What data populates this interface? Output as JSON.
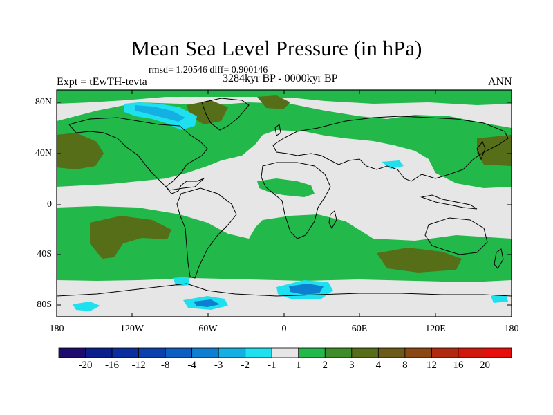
{
  "header": {
    "title": "Mean Sea Level Pressure (in hPa)",
    "rmsd_text": "rmsd= 1.20546 diff= 0.900146",
    "period": "3284kyr BP - 0000kyr BP",
    "experiment": "Expt = tEwTH-tevta",
    "season": "ANN"
  },
  "axes": {
    "y_ticks": [
      "80N",
      "40N",
      "0",
      "40S",
      "80S"
    ],
    "x_ticks": [
      "180",
      "120W",
      "60W",
      "0",
      "60E",
      "120E",
      "180"
    ]
  },
  "colorbar": {
    "labels": [
      "-20",
      "-16",
      "-12",
      "-8",
      "-4",
      "-3",
      "-2",
      "-1",
      "1",
      "2",
      "3",
      "4",
      "8",
      "12",
      "16",
      "20"
    ],
    "colors": [
      "#1d0b6e",
      "#0a1e8c",
      "#0a2e9e",
      "#0a3fae",
      "#0c5ec0",
      "#0e7fd0",
      "#14b0e4",
      "#1ee0ee",
      "#e6e6e6",
      "#22b84a",
      "#3e8c2a",
      "#566e18",
      "#6e5a18",
      "#8a4814",
      "#b02a10",
      "#d2180a",
      "#e80c0c"
    ]
  },
  "palette": {
    "land_bg": "#e6e6e6",
    "coast": "#000000"
  }
}
